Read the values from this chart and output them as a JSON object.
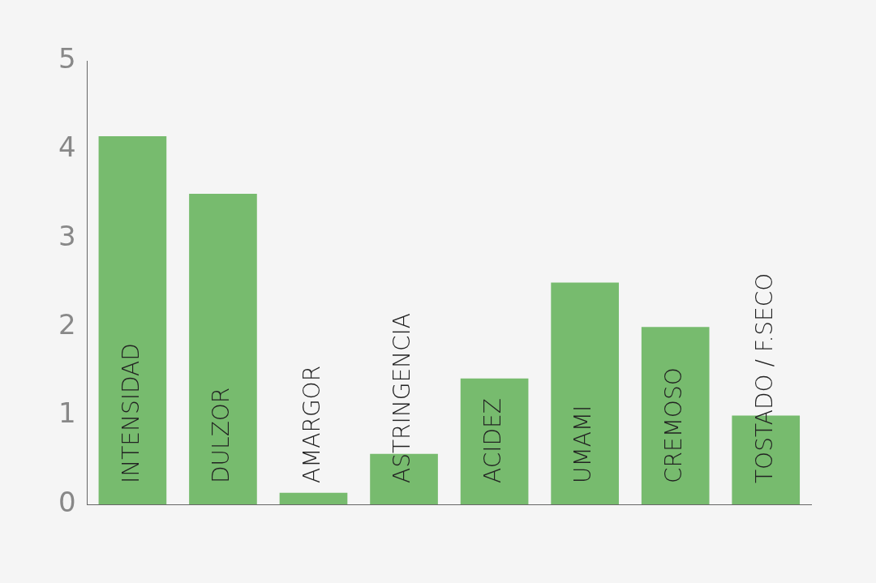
{
  "chart_data": {
    "type": "bar",
    "categories": [
      "INTENSIDAD",
      "DULZOR",
      "AMARGOR",
      "ASTRINGENCIA",
      "ACIDEZ",
      "UMAMI",
      "CREMOSO",
      "TOSTADO / F.SECO"
    ],
    "values": [
      4.15,
      3.5,
      0.13,
      0.57,
      1.42,
      2.5,
      2.0,
      1.0
    ],
    "color": "#77bb6e",
    "ylim": [
      0,
      5
    ],
    "yticks": [
      0,
      1,
      2,
      3,
      4,
      5
    ],
    "grid": false,
    "legend": false
  }
}
